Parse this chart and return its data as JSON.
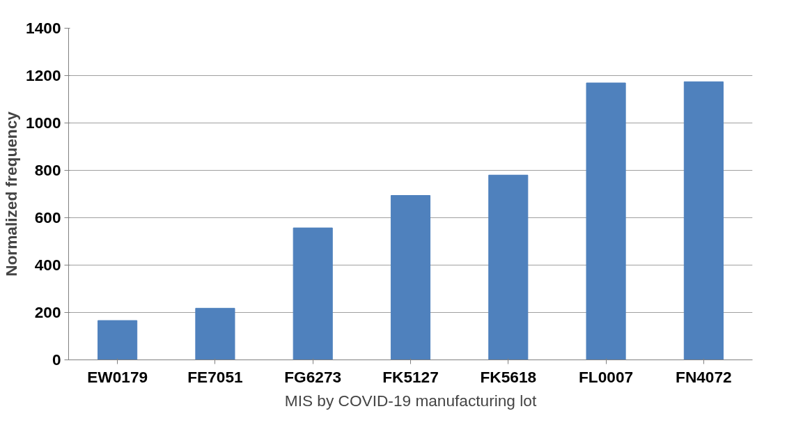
{
  "chart_data": {
    "type": "bar",
    "xlabel": "MIS by COVID-19 manufacturing lot",
    "ylabel": "Normalized frequency",
    "categories": [
      "EW0179",
      "FE7051",
      "FG6273",
      "FK5127",
      "FK5618",
      "FL0007",
      "FN4072"
    ],
    "values": [
      166,
      218,
      557,
      694,
      780,
      1169,
      1174
    ],
    "color": "#4f81bd",
    "ylim": [
      0,
      1400
    ],
    "yticks": [
      0,
      200,
      400,
      600,
      800,
      1000,
      1200,
      1400
    ],
    "grid": "y"
  }
}
